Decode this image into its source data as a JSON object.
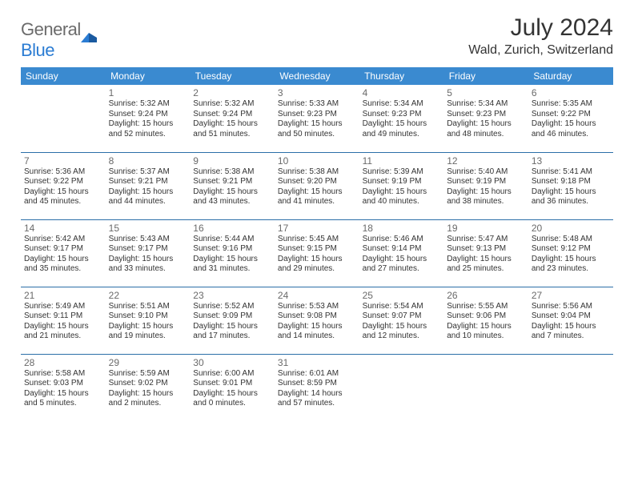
{
  "logo": {
    "word1": "General",
    "word2": "Blue"
  },
  "title": "July 2024",
  "location": "Wald, Zurich, Switzerland",
  "colors": {
    "header_bg": "#3a8ad0",
    "header_text": "#ffffff",
    "cell_border": "#2b6fa8",
    "daynum": "#6a6a6a",
    "body_text": "#333333",
    "logo_gray": "#6b6b6b",
    "logo_blue": "#2b7cd3"
  },
  "weekdays": [
    "Sunday",
    "Monday",
    "Tuesday",
    "Wednesday",
    "Thursday",
    "Friday",
    "Saturday"
  ],
  "weeks": [
    [
      null,
      {
        "n": "1",
        "sr": "5:32 AM",
        "ss": "9:24 PM",
        "dl": "15 hours and 52 minutes."
      },
      {
        "n": "2",
        "sr": "5:32 AM",
        "ss": "9:24 PM",
        "dl": "15 hours and 51 minutes."
      },
      {
        "n": "3",
        "sr": "5:33 AM",
        "ss": "9:23 PM",
        "dl": "15 hours and 50 minutes."
      },
      {
        "n": "4",
        "sr": "5:34 AM",
        "ss": "9:23 PM",
        "dl": "15 hours and 49 minutes."
      },
      {
        "n": "5",
        "sr": "5:34 AM",
        "ss": "9:23 PM",
        "dl": "15 hours and 48 minutes."
      },
      {
        "n": "6",
        "sr": "5:35 AM",
        "ss": "9:22 PM",
        "dl": "15 hours and 46 minutes."
      }
    ],
    [
      {
        "n": "7",
        "sr": "5:36 AM",
        "ss": "9:22 PM",
        "dl": "15 hours and 45 minutes."
      },
      {
        "n": "8",
        "sr": "5:37 AM",
        "ss": "9:21 PM",
        "dl": "15 hours and 44 minutes."
      },
      {
        "n": "9",
        "sr": "5:38 AM",
        "ss": "9:21 PM",
        "dl": "15 hours and 43 minutes."
      },
      {
        "n": "10",
        "sr": "5:38 AM",
        "ss": "9:20 PM",
        "dl": "15 hours and 41 minutes."
      },
      {
        "n": "11",
        "sr": "5:39 AM",
        "ss": "9:19 PM",
        "dl": "15 hours and 40 minutes."
      },
      {
        "n": "12",
        "sr": "5:40 AM",
        "ss": "9:19 PM",
        "dl": "15 hours and 38 minutes."
      },
      {
        "n": "13",
        "sr": "5:41 AM",
        "ss": "9:18 PM",
        "dl": "15 hours and 36 minutes."
      }
    ],
    [
      {
        "n": "14",
        "sr": "5:42 AM",
        "ss": "9:17 PM",
        "dl": "15 hours and 35 minutes."
      },
      {
        "n": "15",
        "sr": "5:43 AM",
        "ss": "9:17 PM",
        "dl": "15 hours and 33 minutes."
      },
      {
        "n": "16",
        "sr": "5:44 AM",
        "ss": "9:16 PM",
        "dl": "15 hours and 31 minutes."
      },
      {
        "n": "17",
        "sr": "5:45 AM",
        "ss": "9:15 PM",
        "dl": "15 hours and 29 minutes."
      },
      {
        "n": "18",
        "sr": "5:46 AM",
        "ss": "9:14 PM",
        "dl": "15 hours and 27 minutes."
      },
      {
        "n": "19",
        "sr": "5:47 AM",
        "ss": "9:13 PM",
        "dl": "15 hours and 25 minutes."
      },
      {
        "n": "20",
        "sr": "5:48 AM",
        "ss": "9:12 PM",
        "dl": "15 hours and 23 minutes."
      }
    ],
    [
      {
        "n": "21",
        "sr": "5:49 AM",
        "ss": "9:11 PM",
        "dl": "15 hours and 21 minutes."
      },
      {
        "n": "22",
        "sr": "5:51 AM",
        "ss": "9:10 PM",
        "dl": "15 hours and 19 minutes."
      },
      {
        "n": "23",
        "sr": "5:52 AM",
        "ss": "9:09 PM",
        "dl": "15 hours and 17 minutes."
      },
      {
        "n": "24",
        "sr": "5:53 AM",
        "ss": "9:08 PM",
        "dl": "15 hours and 14 minutes."
      },
      {
        "n": "25",
        "sr": "5:54 AM",
        "ss": "9:07 PM",
        "dl": "15 hours and 12 minutes."
      },
      {
        "n": "26",
        "sr": "5:55 AM",
        "ss": "9:06 PM",
        "dl": "15 hours and 10 minutes."
      },
      {
        "n": "27",
        "sr": "5:56 AM",
        "ss": "9:04 PM",
        "dl": "15 hours and 7 minutes."
      }
    ],
    [
      {
        "n": "28",
        "sr": "5:58 AM",
        "ss": "9:03 PM",
        "dl": "15 hours and 5 minutes."
      },
      {
        "n": "29",
        "sr": "5:59 AM",
        "ss": "9:02 PM",
        "dl": "15 hours and 2 minutes."
      },
      {
        "n": "30",
        "sr": "6:00 AM",
        "ss": "9:01 PM",
        "dl": "15 hours and 0 minutes."
      },
      {
        "n": "31",
        "sr": "6:01 AM",
        "ss": "8:59 PM",
        "dl": "14 hours and 57 minutes."
      },
      null,
      null,
      null
    ]
  ],
  "labels": {
    "sunrise": "Sunrise:",
    "sunset": "Sunset:",
    "daylight": "Daylight:"
  }
}
